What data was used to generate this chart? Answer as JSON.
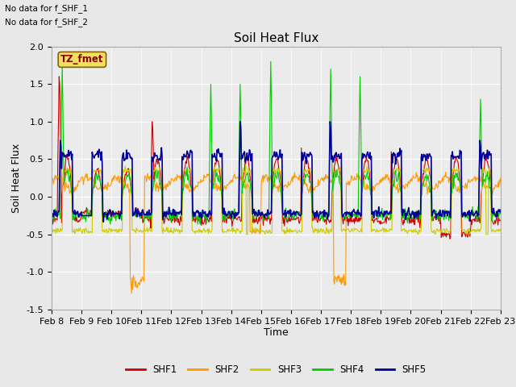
{
  "title": "Soil Heat Flux",
  "ylabel": "Soil Heat Flux",
  "xlabel": "Time",
  "ylim": [
    -1.5,
    2.0
  ],
  "yticks": [
    -1.5,
    -1.0,
    -0.5,
    0.0,
    0.5,
    1.0,
    1.5,
    2.0
  ],
  "x_tick_labels": [
    "Feb 8",
    "Feb 9",
    "Feb 10",
    "Feb 11",
    "Feb 12",
    "Feb 13",
    "Feb 14",
    "Feb 15",
    "Feb 16",
    "Feb 17",
    "Feb 18",
    "Feb 19",
    "Feb 20",
    "Feb 21",
    "Feb 22",
    "Feb 23"
  ],
  "no_data_text1": "No data for f_SHF_1",
  "no_data_text2": "No data for f_SHF_2",
  "tz_label": "TZ_fmet",
  "series_colors": [
    "#cc0000",
    "#ff9900",
    "#cccc00",
    "#00cc00",
    "#000099"
  ],
  "series_names": [
    "SHF1",
    "SHF2",
    "SHF3",
    "SHF4",
    "SHF5"
  ],
  "bg_color": "#e8e8e8",
  "plot_bg": "#ebebeb",
  "title_fontsize": 11,
  "axis_label_fontsize": 9,
  "tick_fontsize": 8
}
